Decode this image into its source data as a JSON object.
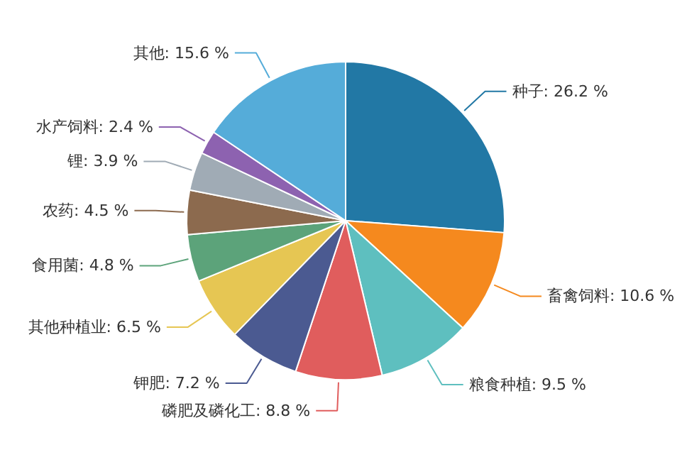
{
  "chart_data": {
    "type": "pie",
    "categories": [
      "种子",
      "畜禽饲料",
      "粮食种植",
      "磷肥及磷化工",
      "钾肥",
      "其他种植业",
      "食用菌",
      "农药",
      "锂",
      "水产饲料",
      "其他"
    ],
    "values": [
      26.2,
      10.6,
      9.5,
      8.8,
      7.2,
      6.5,
      4.8,
      4.5,
      3.9,
      2.4,
      15.6
    ],
    "value_labels": [
      "26.2 %",
      "10.6 %",
      "9.5 %",
      "8.8 %",
      "7.2 %",
      "6.5 %",
      "4.8 %",
      "4.5 %",
      "3.9 %",
      "2.4 %",
      "15.6 %"
    ],
    "colors": [
      "#2278a5",
      "#f5891e",
      "#5ebfbf",
      "#e05d5d",
      "#4b5a91",
      "#e6c653",
      "#5ca37a",
      "#8c6a4e",
      "#a0abb5",
      "#8d62b0",
      "#55acd9"
    ]
  }
}
